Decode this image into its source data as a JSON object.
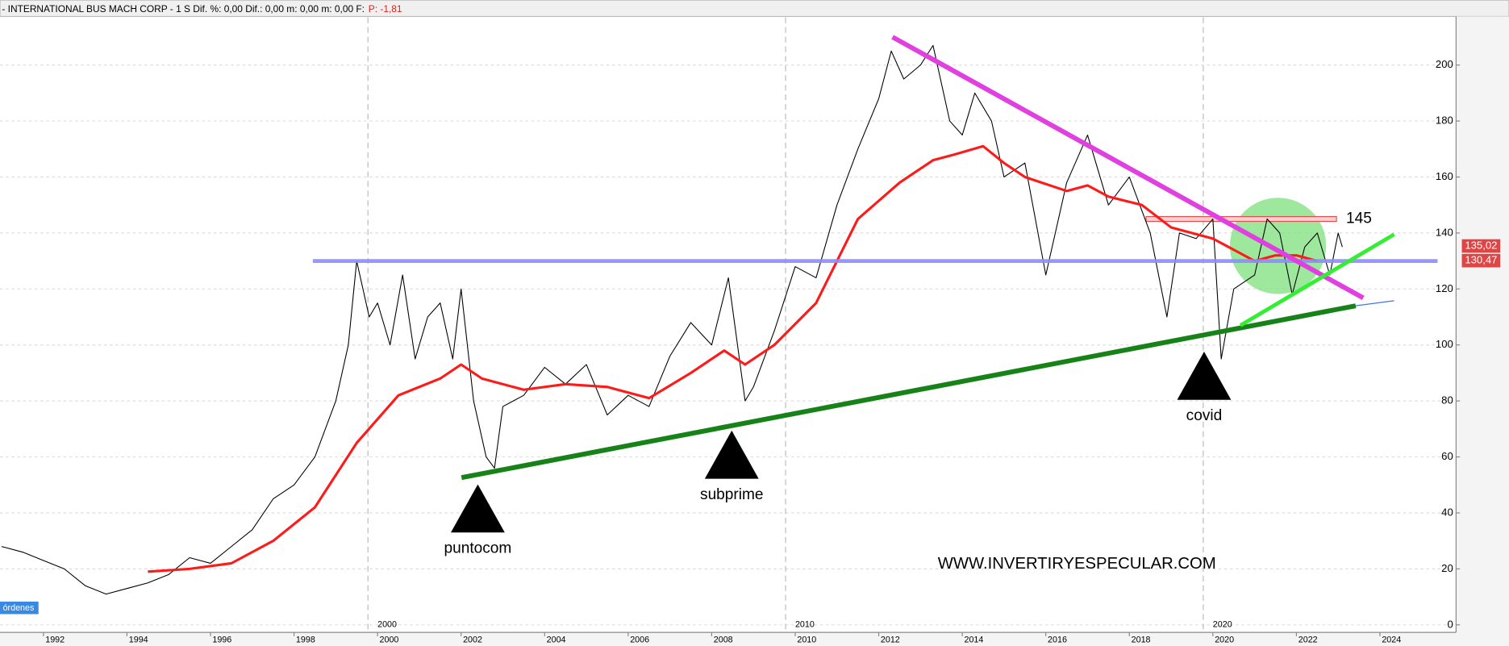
{
  "chart_data": {
    "type": "line",
    "title": "- INTERNATIONAL BUS MACH CORP -  1 S  Dif. %: 0,00  Dif.: 0,00  m: 0,00  m: 0,00  F:",
    "title_suffix": "P: -1,81",
    "footer_tag": "órdenes",
    "watermark": "WWW.INVERTIRYESPECULAR.COM",
    "xlim": [
      1990.96,
      2025.8
    ],
    "ylim": [
      -2,
      217
    ],
    "xticks": [
      1992,
      1994,
      1996,
      1998,
      2000,
      2002,
      2004,
      2006,
      2008,
      2010,
      2012,
      2014,
      2016,
      2018,
      2020,
      2022,
      2024
    ],
    "decade_ticks": [
      2000,
      2010,
      2020
    ],
    "yticks": [
      0,
      20,
      40,
      60,
      80,
      100,
      120,
      140,
      160,
      180,
      200
    ],
    "grid": true,
    "series": [
      {
        "color": "#000000",
        "x": [
          1991,
          1991.5,
          1992,
          1992.5,
          1993,
          1993.5,
          1994,
          1994.5,
          1995,
          1995.5,
          1996,
          1996.5,
          1997,
          1997.5,
          1998,
          1998.5,
          1999,
          1999.3,
          1999.5,
          1999.8,
          2000,
          2000.3,
          2000.6,
          2000.9,
          2001.2,
          2001.5,
          2001.8,
          2002,
          2002.3,
          2002.6,
          2002.8,
          2003,
          2003.5,
          2004,
          2004.5,
          2005,
          2005.5,
          2006,
          2006.5,
          2007,
          2007.5,
          2008,
          2008.4,
          2008.8,
          2009,
          2009.5,
          2010,
          2010.5,
          2011,
          2011.5,
          2012,
          2012.3,
          2012.6,
          2013,
          2013.3,
          2013.7,
          2014,
          2014.3,
          2014.7,
          2015,
          2015.5,
          2016,
          2016.5,
          2017,
          2017.5,
          2018,
          2018.5,
          2018.9,
          2019.2,
          2019.6,
          2020,
          2020.2,
          2020.5,
          2021,
          2021.3,
          2021.6,
          2021.9,
          2022.2,
          2022.5,
          2022.8,
          2023,
          2023.1
        ],
        "values": [
          28,
          26,
          23,
          20,
          14,
          11,
          13,
          15,
          18,
          24,
          22,
          28,
          34,
          45,
          50,
          60,
          80,
          100,
          130,
          110,
          115,
          100,
          125,
          95,
          110,
          115,
          95,
          120,
          80,
          60,
          56,
          78,
          82,
          92,
          86,
          93,
          75,
          82,
          78,
          96,
          108,
          100,
          124,
          80,
          85,
          105,
          128,
          124,
          150,
          170,
          188,
          205,
          195,
          200,
          207,
          180,
          175,
          190,
          180,
          160,
          165,
          125,
          158,
          175,
          150,
          160,
          140,
          110,
          140,
          138,
          145,
          95,
          120,
          125,
          145,
          140,
          118,
          135,
          140,
          125,
          140,
          135
        ]
      },
      {
        "color": "#ff1a1a",
        "x": [
          1994.5,
          1995.5,
          1996.5,
          1997.5,
          1998.5,
          1999.5,
          2000.5,
          2001.5,
          2002,
          2002.5,
          2003.5,
          2004.5,
          2005.5,
          2006.5,
          2007.5,
          2008.3,
          2008.8,
          2009.5,
          2010.5,
          2011.5,
          2012.5,
          2013.3,
          2013.8,
          2014.5,
          2015,
          2015.5,
          2016.5,
          2017,
          2017.5,
          2018.3,
          2019,
          2020,
          2021,
          2021.5,
          2022,
          2022.5
        ],
        "values": [
          19,
          20,
          22,
          30,
          42,
          65,
          82,
          88,
          93,
          88,
          84,
          86,
          85,
          81,
          90,
          98,
          93,
          100,
          115,
          145,
          158,
          166,
          168,
          171,
          165,
          160,
          155,
          157,
          153,
          150,
          142,
          138,
          130,
          132,
          132,
          130
        ]
      }
    ],
    "trendlines": [
      {
        "color": "#8c8cff",
        "x": [
          1998.45,
          2025.38
        ],
        "y": [
          130,
          130
        ]
      },
      {
        "color": "#e040e0",
        "x": [
          2012.33,
          2023.6
        ],
        "y": [
          210,
          116.8
        ]
      },
      {
        "color": "#178217",
        "x": [
          2002.01,
          2023.42
        ],
        "y": [
          52.6,
          114
        ]
      },
      {
        "color": "#3a7ae0",
        "x": [
          2023.42,
          2024.34
        ],
        "y": [
          114,
          115.8
        ]
      },
      {
        "color": "#33ee33",
        "x": [
          2020.66,
          2024.34
        ],
        "y": [
          107,
          139.5
        ]
      }
    ],
    "resistance": {
      "value": 145,
      "x": [
        2018.4,
        2022.96
      ],
      "color": "#e05050"
    },
    "highlight": {
      "x": 2021.56,
      "y": 135.4,
      "color": "#7ee07e"
    },
    "annotations": [
      {
        "text": "puntocom",
        "x": 2002.4,
        "y": 50.2
      },
      {
        "text": "subprime",
        "x": 2008.48,
        "y": 69.4
      },
      {
        "text": "covid",
        "x": 2019.79,
        "y": 97.6
      }
    ],
    "price_labels": [
      {
        "value": 135.02,
        "label": "135,02"
      },
      {
        "value": 130.47,
        "label": "130,47"
      }
    ]
  }
}
